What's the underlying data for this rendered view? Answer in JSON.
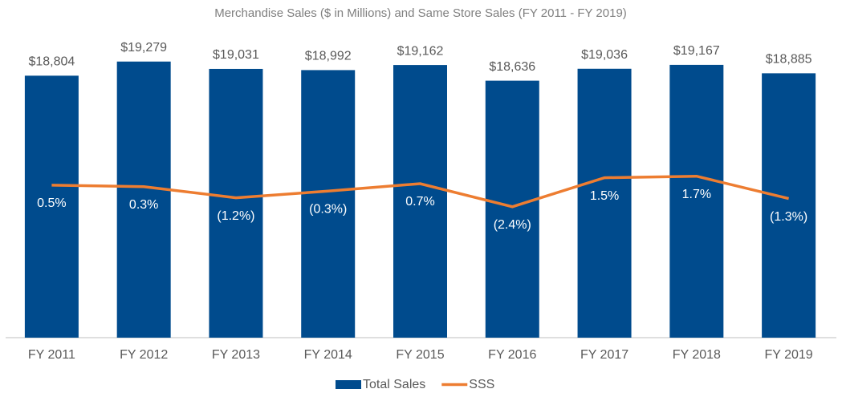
{
  "chart_data": {
    "type": "bar",
    "title": "Merchandise Sales ($ in Millions) and Same Store Sales (FY 2011 - FY 2019)",
    "categories": [
      "FY 2011",
      "FY 2012",
      "FY 2013",
      "FY 2014",
      "FY 2015",
      "FY 2016",
      "FY 2017",
      "FY 2018",
      "FY 2019"
    ],
    "series": [
      {
        "name": "Total Sales",
        "type": "bar",
        "color": "#004b8d",
        "values": [
          18804,
          19279,
          19031,
          18992,
          19162,
          18636,
          19036,
          19167,
          18885
        ],
        "value_labels": [
          "$18,804",
          "$19,279",
          "$19,031",
          "$18,992",
          "$19,162",
          "$18,636",
          "$19,036",
          "$19,167",
          "$18,885"
        ]
      },
      {
        "name": "SSS",
        "type": "line",
        "color": "#ed7d31",
        "axis": "y2",
        "values": [
          0.5,
          0.3,
          -1.2,
          -0.3,
          0.7,
          -2.4,
          1.5,
          1.7,
          -1.3
        ],
        "value_labels": [
          "0.5%",
          "0.3%",
          "(1.2%)",
          "(0.3%)",
          "0.7%",
          "(2.4%)",
          "1.5%",
          "1.7%",
          "(1.3%)"
        ]
      }
    ],
    "ylim": [
      10000,
      20000
    ],
    "y2lim": [
      -20,
      20
    ],
    "legend": "bottom"
  }
}
